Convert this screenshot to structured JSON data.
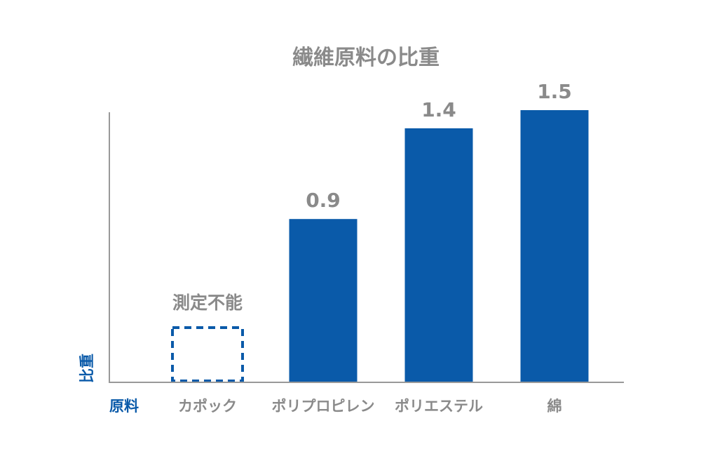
{
  "chart_data": {
    "type": "bar",
    "title": "繊維原料の比重",
    "xlabel": "原料",
    "ylabel": "比重",
    "categories": [
      "カポック",
      "ポリプロピレン",
      "ポリエステル",
      "綿"
    ],
    "values": [
      null,
      0.9,
      1.4,
      1.5
    ],
    "value_labels": [
      "",
      "0.9",
      "1.4",
      "1.5"
    ],
    "notes": [
      "測定不能",
      "",
      "",
      ""
    ],
    "ylim": [
      0,
      1.5
    ],
    "grid": false,
    "legend": "none"
  },
  "colors": {
    "bar": "#0a5aa9",
    "text_gray": "#8a8a8a",
    "axis_label": "#0a5aa9",
    "axis_line": "#999999",
    "placeholder_stroke": "#0a5aa9"
  }
}
